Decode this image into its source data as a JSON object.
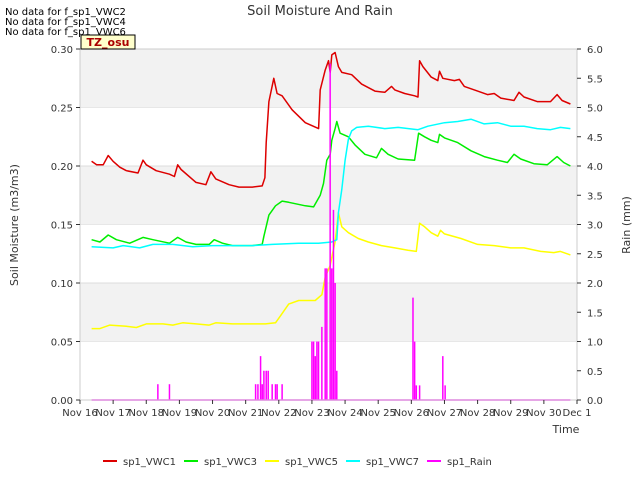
{
  "no_data_messages": [
    "No data for f_sp1_VWC2",
    "No data for f_sp1_VWC4",
    "No data for f_sp1_VWC6"
  ],
  "chart_data": {
    "type": "line",
    "title": "Soil Moisture And Rain",
    "xlabel": "Time",
    "ylabel": "Soil Moisture (m3/m3)",
    "y2label": "Rain (mm)",
    "site_label": "TZ_osu",
    "ylim": [
      0,
      0.3
    ],
    "y2lim": [
      0,
      6.0
    ],
    "xlim": [
      0,
      15
    ],
    "yticks": [
      "0.00",
      "0.05",
      "0.10",
      "0.15",
      "0.20",
      "0.25",
      "0.30"
    ],
    "y2ticks": [
      "0.0",
      "0.5",
      "1.0",
      "1.5",
      "2.0",
      "2.5",
      "3.0",
      "3.5",
      "4.0",
      "4.5",
      "5.0",
      "5.5",
      "6.0"
    ],
    "xticks": [
      "Nov 16",
      "Nov 17",
      "Nov 18",
      "Nov 19",
      "Nov 20",
      "Nov 21",
      "Nov 22",
      "Nov 23",
      "Nov 24",
      "Nov 25",
      "Nov 26",
      "Nov 27",
      "Nov 28",
      "Nov 29",
      "Nov 30",
      "Dec 1"
    ],
    "grid": "horizontal bands",
    "legend_position": "bottom",
    "series": [
      {
        "name": "sp1_VWC1",
        "color": "#dd0000",
        "axis": "left",
        "points": [
          [
            0.35,
            0.204
          ],
          [
            0.5,
            0.201
          ],
          [
            0.7,
            0.201
          ],
          [
            0.85,
            0.209
          ],
          [
            1.0,
            0.204
          ],
          [
            1.2,
            0.199
          ],
          [
            1.4,
            0.196
          ],
          [
            1.75,
            0.194
          ],
          [
            1.9,
            0.205
          ],
          [
            2.0,
            0.201
          ],
          [
            2.3,
            0.196
          ],
          [
            2.7,
            0.193
          ],
          [
            2.85,
            0.191
          ],
          [
            2.95,
            0.201
          ],
          [
            3.05,
            0.197
          ],
          [
            3.5,
            0.186
          ],
          [
            3.8,
            0.184
          ],
          [
            3.95,
            0.195
          ],
          [
            4.1,
            0.189
          ],
          [
            4.5,
            0.184
          ],
          [
            4.8,
            0.182
          ],
          [
            5.2,
            0.182
          ],
          [
            5.5,
            0.183
          ],
          [
            5.58,
            0.19
          ],
          [
            5.62,
            0.22
          ],
          [
            5.7,
            0.255
          ],
          [
            5.85,
            0.275
          ],
          [
            5.95,
            0.262
          ],
          [
            6.1,
            0.26
          ],
          [
            6.4,
            0.248
          ],
          [
            6.8,
            0.237
          ],
          [
            7.2,
            0.232
          ],
          [
            7.25,
            0.265
          ],
          [
            7.4,
            0.282
          ],
          [
            7.5,
            0.29
          ],
          [
            7.55,
            0.28
          ],
          [
            7.6,
            0.295
          ],
          [
            7.7,
            0.297
          ],
          [
            7.8,
            0.285
          ],
          [
            7.9,
            0.28
          ],
          [
            8.2,
            0.278
          ],
          [
            8.5,
            0.27
          ],
          [
            8.9,
            0.264
          ],
          [
            9.2,
            0.263
          ],
          [
            9.4,
            0.268
          ],
          [
            9.5,
            0.265
          ],
          [
            9.8,
            0.262
          ],
          [
            10.1,
            0.26
          ],
          [
            10.2,
            0.259
          ],
          [
            10.25,
            0.29
          ],
          [
            10.35,
            0.285
          ],
          [
            10.6,
            0.276
          ],
          [
            10.8,
            0.273
          ],
          [
            10.85,
            0.281
          ],
          [
            10.95,
            0.275
          ],
          [
            11.3,
            0.273
          ],
          [
            11.45,
            0.274
          ],
          [
            11.6,
            0.268
          ],
          [
            12.0,
            0.264
          ],
          [
            12.3,
            0.261
          ],
          [
            12.5,
            0.262
          ],
          [
            12.7,
            0.258
          ],
          [
            13.1,
            0.256
          ],
          [
            13.25,
            0.263
          ],
          [
            13.4,
            0.259
          ],
          [
            13.8,
            0.255
          ],
          [
            14.2,
            0.255
          ],
          [
            14.4,
            0.261
          ],
          [
            14.55,
            0.256
          ],
          [
            14.8,
            0.253
          ]
        ]
      },
      {
        "name": "sp1_VWC3",
        "color": "#00ee00",
        "axis": "left",
        "points": [
          [
            0.35,
            0.137
          ],
          [
            0.6,
            0.135
          ],
          [
            0.85,
            0.141
          ],
          [
            1.1,
            0.137
          ],
          [
            1.5,
            0.134
          ],
          [
            1.9,
            0.139
          ],
          [
            2.2,
            0.137
          ],
          [
            2.7,
            0.134
          ],
          [
            2.95,
            0.139
          ],
          [
            3.2,
            0.135
          ],
          [
            3.5,
            0.133
          ],
          [
            3.9,
            0.133
          ],
          [
            4.05,
            0.137
          ],
          [
            4.3,
            0.134
          ],
          [
            4.6,
            0.132
          ],
          [
            5.2,
            0.132
          ],
          [
            5.5,
            0.133
          ],
          [
            5.55,
            0.14
          ],
          [
            5.7,
            0.158
          ],
          [
            5.9,
            0.166
          ],
          [
            6.1,
            0.17
          ],
          [
            6.3,
            0.169
          ],
          [
            6.8,
            0.166
          ],
          [
            7.05,
            0.165
          ],
          [
            7.25,
            0.175
          ],
          [
            7.35,
            0.185
          ],
          [
            7.45,
            0.205
          ],
          [
            7.55,
            0.21
          ],
          [
            7.6,
            0.222
          ],
          [
            7.7,
            0.232
          ],
          [
            7.75,
            0.238
          ],
          [
            7.85,
            0.228
          ],
          [
            8.1,
            0.225
          ],
          [
            8.3,
            0.218
          ],
          [
            8.6,
            0.21
          ],
          [
            8.95,
            0.207
          ],
          [
            9.1,
            0.215
          ],
          [
            9.3,
            0.21
          ],
          [
            9.6,
            0.206
          ],
          [
            10.1,
            0.205
          ],
          [
            10.22,
            0.228
          ],
          [
            10.4,
            0.225
          ],
          [
            10.6,
            0.222
          ],
          [
            10.8,
            0.22
          ],
          [
            10.85,
            0.227
          ],
          [
            11.0,
            0.224
          ],
          [
            11.4,
            0.22
          ],
          [
            11.8,
            0.213
          ],
          [
            12.2,
            0.208
          ],
          [
            12.6,
            0.205
          ],
          [
            12.9,
            0.203
          ],
          [
            13.1,
            0.21
          ],
          [
            13.3,
            0.206
          ],
          [
            13.7,
            0.202
          ],
          [
            14.1,
            0.201
          ],
          [
            14.4,
            0.208
          ],
          [
            14.6,
            0.203
          ],
          [
            14.8,
            0.2
          ]
        ]
      },
      {
        "name": "sp1_VWC5",
        "color": "#ffff00",
        "axis": "left",
        "points": [
          [
            0.35,
            0.061
          ],
          [
            0.6,
            0.061
          ],
          [
            0.9,
            0.064
          ],
          [
            1.4,
            0.063
          ],
          [
            1.7,
            0.062
          ],
          [
            2.0,
            0.065
          ],
          [
            2.5,
            0.065
          ],
          [
            2.8,
            0.064
          ],
          [
            3.1,
            0.066
          ],
          [
            3.5,
            0.065
          ],
          [
            3.9,
            0.064
          ],
          [
            4.1,
            0.066
          ],
          [
            4.6,
            0.065
          ],
          [
            5.1,
            0.065
          ],
          [
            5.6,
            0.065
          ],
          [
            5.9,
            0.066
          ],
          [
            6.05,
            0.072
          ],
          [
            6.3,
            0.082
          ],
          [
            6.6,
            0.085
          ],
          [
            7.1,
            0.085
          ],
          [
            7.3,
            0.09
          ],
          [
            7.4,
            0.105
          ],
          [
            7.55,
            0.115
          ],
          [
            7.62,
            0.125
          ],
          [
            7.7,
            0.135
          ],
          [
            7.8,
            0.16
          ],
          [
            7.9,
            0.148
          ],
          [
            8.1,
            0.143
          ],
          [
            8.4,
            0.138
          ],
          [
            8.7,
            0.135
          ],
          [
            9.1,
            0.132
          ],
          [
            9.5,
            0.13
          ],
          [
            9.9,
            0.128
          ],
          [
            10.15,
            0.127
          ],
          [
            10.25,
            0.151
          ],
          [
            10.4,
            0.148
          ],
          [
            10.6,
            0.143
          ],
          [
            10.8,
            0.14
          ],
          [
            10.88,
            0.145
          ],
          [
            11.0,
            0.142
          ],
          [
            11.5,
            0.138
          ],
          [
            12.0,
            0.133
          ],
          [
            12.5,
            0.132
          ],
          [
            13.0,
            0.13
          ],
          [
            13.4,
            0.13
          ],
          [
            13.9,
            0.127
          ],
          [
            14.3,
            0.126
          ],
          [
            14.5,
            0.127
          ],
          [
            14.8,
            0.124
          ]
        ]
      },
      {
        "name": "sp1_VWC7",
        "color": "#00ffff",
        "axis": "left",
        "points": [
          [
            0.35,
            0.131
          ],
          [
            1.0,
            0.13
          ],
          [
            1.3,
            0.132
          ],
          [
            1.8,
            0.13
          ],
          [
            2.2,
            0.133
          ],
          [
            2.8,
            0.133
          ],
          [
            3.4,
            0.131
          ],
          [
            4.0,
            0.132
          ],
          [
            4.6,
            0.132
          ],
          [
            5.2,
            0.132
          ],
          [
            5.8,
            0.133
          ],
          [
            6.6,
            0.134
          ],
          [
            7.2,
            0.134
          ],
          [
            7.6,
            0.135
          ],
          [
            7.75,
            0.137
          ],
          [
            7.8,
            0.16
          ],
          [
            7.9,
            0.18
          ],
          [
            8.0,
            0.205
          ],
          [
            8.1,
            0.223
          ],
          [
            8.2,
            0.23
          ],
          [
            8.35,
            0.233
          ],
          [
            8.7,
            0.234
          ],
          [
            9.2,
            0.232
          ],
          [
            9.6,
            0.233
          ],
          [
            10.2,
            0.231
          ],
          [
            10.5,
            0.234
          ],
          [
            11.0,
            0.237
          ],
          [
            11.4,
            0.238
          ],
          [
            11.8,
            0.24
          ],
          [
            12.2,
            0.236
          ],
          [
            12.6,
            0.237
          ],
          [
            13.0,
            0.234
          ],
          [
            13.4,
            0.234
          ],
          [
            13.8,
            0.232
          ],
          [
            14.2,
            0.231
          ],
          [
            14.5,
            0.233
          ],
          [
            14.8,
            0.232
          ]
        ]
      },
      {
        "name": "sp1_Rain",
        "color": "#ff00ff",
        "axis": "right",
        "baseline": [
          0.35,
          14.8
        ],
        "spikes": [
          [
            2.35,
            0.27
          ],
          [
            2.7,
            0.27
          ],
          [
            5.3,
            0.27
          ],
          [
            5.37,
            0.27
          ],
          [
            5.45,
            0.75
          ],
          [
            5.5,
            0.27
          ],
          [
            5.55,
            0.5
          ],
          [
            5.62,
            0.5
          ],
          [
            5.68,
            0.5
          ],
          [
            5.8,
            0.27
          ],
          [
            5.9,
            0.27
          ],
          [
            5.95,
            0.27
          ],
          [
            6.1,
            0.27
          ],
          [
            7.0,
            1.0
          ],
          [
            7.05,
            1.0
          ],
          [
            7.1,
            0.75
          ],
          [
            7.15,
            1.0
          ],
          [
            7.2,
            1.0
          ],
          [
            7.3,
            1.25
          ],
          [
            7.4,
            2.25
          ],
          [
            7.45,
            2.25
          ],
          [
            7.55,
            5.75
          ],
          [
            7.6,
            2.25
          ],
          [
            7.65,
            3.25
          ],
          [
            7.7,
            2.0
          ],
          [
            7.75,
            0.5
          ],
          [
            10.05,
            1.75
          ],
          [
            10.1,
            1.0
          ],
          [
            10.15,
            0.25
          ],
          [
            10.25,
            0.25
          ],
          [
            10.95,
            0.75
          ],
          [
            11.02,
            0.25
          ]
        ]
      }
    ]
  }
}
